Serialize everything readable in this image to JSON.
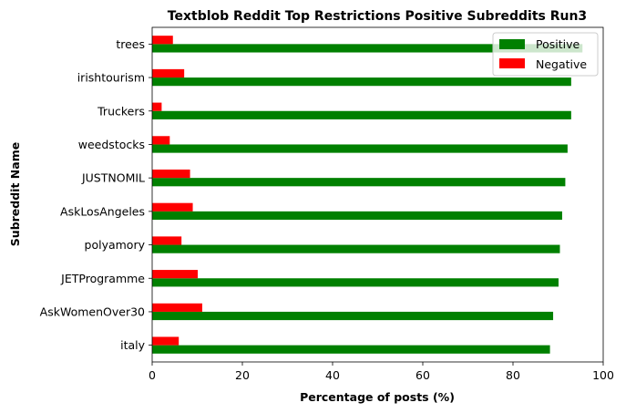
{
  "chart_data": {
    "type": "bar",
    "orientation": "horizontal",
    "title": "Textblob Reddit Top Restrictions Positive Subreddits Run3",
    "xlabel": "Percentage of posts (%)",
    "ylabel": "Subreddit Name",
    "xlim": [
      0,
      100
    ],
    "xticks": [
      "0",
      "20",
      "40",
      "60",
      "80",
      "100"
    ],
    "categories": [
      "italy",
      "AskWomenOver30",
      "JETProgramme",
      "polyamory",
      "AskLosAngeles",
      "JUSTNOMIL",
      "weedstocks",
      "Truckers",
      "irishtourism",
      "trees"
    ],
    "series": [
      {
        "name": "Positive",
        "color": "#008000",
        "values": [
          88.2,
          88.9,
          90.1,
          90.4,
          90.9,
          91.6,
          92.1,
          92.9,
          92.9,
          95.4
        ]
      },
      {
        "name": "Negative",
        "color": "#ff0000",
        "values": [
          5.9,
          11.1,
          10.1,
          6.5,
          9.0,
          8.4,
          3.9,
          2.1,
          7.1,
          4.6
        ]
      }
    ],
    "legend_position": "top-right",
    "grid": false
  }
}
